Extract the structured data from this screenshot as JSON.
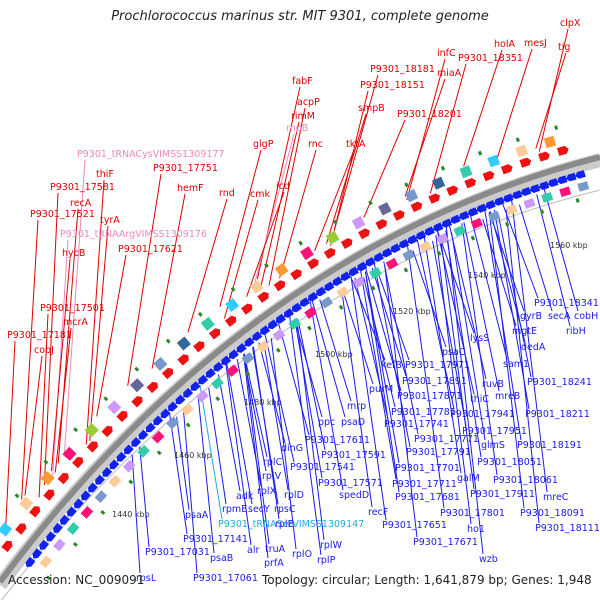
{
  "title": "Prochlorococcus marinus str. MIT 9301, complete genome",
  "footer": {
    "accession": "Accession: NC_009091",
    "topology": "Topology: circular; Length: 1,641,879 bp; Genes: 1,948"
  },
  "colors": {
    "forward_label": "#dd0000",
    "reverse_label": "#1a1aee",
    "rna_label": "#ee88bb",
    "trna_label": "#22aadd",
    "ruler": "#999999",
    "forward_arrow": "#ee1111",
    "reverse_arrow": "#1122ee"
  },
  "ruler_ticks": [
    "1440 kbp",
    "1460 kbp",
    "1480 kbp",
    "1500 kbp",
    "1520 kbp",
    "1540 kbp",
    "1560 kbp"
  ],
  "forward_labels": [
    "clpX",
    "tig",
    "mesJ",
    "holA",
    "P9301_18351",
    "infC",
    "miaA",
    "P9301_18181",
    "P9301_18151",
    "smpB",
    "P9301_18201",
    "fabF",
    "acpP",
    "rimM",
    "rnpB",
    "glgP",
    "rnc",
    "tktA",
    "P9301_tRNACysVIMSS1309177",
    "P9301_17751",
    "thiF",
    "P9301_17581",
    "hemF",
    "rnd",
    "cmk",
    "icd",
    "recA",
    "P9301_17521",
    "tyrA",
    "P9301_tRNAArgVIMSS1309176",
    "hycB",
    "P9301_17621",
    "P9301_17501",
    "mcrA",
    "P9301_17181",
    "cobJ"
  ],
  "reverse_labels": [
    "P9301_18341",
    "gyrB",
    "secA",
    "cobH",
    "ribH",
    "mgtE",
    "lysS",
    "dedA",
    "psaC",
    "sam1",
    "kefB",
    "P9301_17971",
    "ruvB",
    "P9301_17891",
    "P9301_18241",
    "thiC",
    "mreB",
    "purM",
    "P9301_17871",
    "mrp",
    "P9301_17781",
    "P9301_17941",
    "P9301_18211",
    "ppc",
    "psaD",
    "P9301_17741",
    "P9301_17951",
    "P9301_17611",
    "P9301_17771",
    "glmS",
    "P9301_18191",
    "dinG",
    "P9301_17591",
    "P9301_17791",
    "P9301_18051",
    "rplC",
    "P9301_17541",
    "P9301_17701",
    "rplV",
    "galM",
    "P9301_18061",
    "P9301_17571",
    "P9301_17711",
    "rplX",
    "rplD",
    "spedD",
    "P9301_17681",
    "P9301_17911",
    "mreC",
    "adk",
    "rpmE",
    "secY",
    "rpsC",
    "recF",
    "P9301_17801",
    "P9301_18091",
    "psaA",
    "P9301_17651",
    "ho1",
    "P9301_18111",
    "P9301_tRNASerVIMSS1309147",
    "rplE",
    "rplW",
    "P9301_17141",
    "truA",
    "P9301_17671",
    "wzb",
    "P9301_17031",
    "psaB",
    "alr",
    "prfA",
    "rplO",
    "rplP",
    "rpsL",
    "P9301_17061"
  ]
}
